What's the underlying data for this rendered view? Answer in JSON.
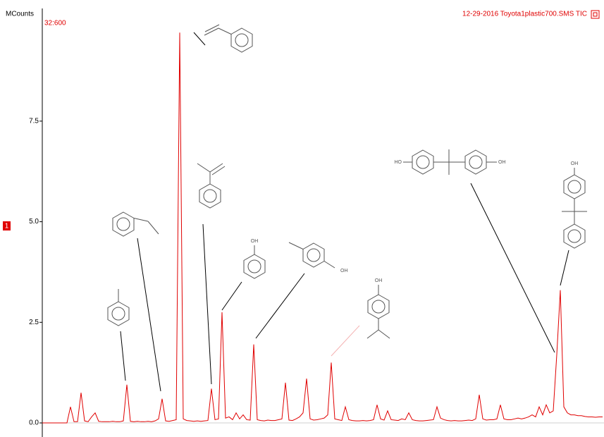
{
  "chart_data": {
    "type": "line",
    "y_label": "MCounts",
    "subtitle": "32:600",
    "title": "12-29-2016  Toyota1plastic700.SMS TIC",
    "marker": "1",
    "color": "#e00000",
    "ylim": [
      -0.35,
      10.3
    ],
    "yticks": [
      {
        "value": 0,
        "label": "0.0"
      },
      2.5,
      {
        "value": 5,
        "label": "5.0"
      },
      7.5
    ],
    "annotations": [
      "OH",
      "OH",
      "OH",
      "HO",
      "OH",
      "OH"
    ],
    "values": [
      0,
      0,
      0,
      0,
      0,
      0,
      0,
      0,
      0.4,
      0.03,
      0.03,
      0.75,
      0.05,
      0.03,
      0.15,
      0.25,
      0.04,
      0.03,
      0.03,
      0.03,
      0.04,
      0.03,
      0.03,
      0.05,
      0.95,
      0.04,
      0.03,
      0.04,
      0.03,
      0.03,
      0.04,
      0.03,
      0.05,
      0.1,
      0.6,
      0.05,
      0.04,
      0.06,
      0.08,
      9.7,
      0.1,
      0.06,
      0.05,
      0.04,
      0.05,
      0.04,
      0.05,
      0.06,
      0.85,
      0.08,
      0.1,
      2.75,
      0.12,
      0.15,
      0.08,
      0.25,
      0.1,
      0.2,
      0.08,
      0.07,
      1.95,
      0.08,
      0.06,
      0.05,
      0.07,
      0.06,
      0.06,
      0.08,
      0.1,
      1.0,
      0.07,
      0.06,
      0.1,
      0.15,
      0.25,
      1.1,
      0.1,
      0.07,
      0.08,
      0.1,
      0.12,
      0.2,
      1.5,
      0.1,
      0.08,
      0.06,
      0.4,
      0.08,
      0.06,
      0.05,
      0.05,
      0.06,
      0.05,
      0.06,
      0.08,
      0.45,
      0.1,
      0.07,
      0.3,
      0.08,
      0.07,
      0.06,
      0.1,
      0.08,
      0.25,
      0.08,
      0.06,
      0.05,
      0.05,
      0.06,
      0.07,
      0.08,
      0.4,
      0.12,
      0.08,
      0.06,
      0.05,
      0.06,
      0.05,
      0.05,
      0.06,
      0.07,
      0.06,
      0.1,
      0.7,
      0.1,
      0.07,
      0.08,
      0.08,
      0.1,
      0.45,
      0.1,
      0.08,
      0.08,
      0.1,
      0.12,
      0.1,
      0.12,
      0.15,
      0.2,
      0.15,
      0.4,
      0.2,
      0.45,
      0.25,
      0.3,
      1.7,
      3.3,
      0.4,
      0.25,
      0.2,
      0.2,
      0.18,
      0.18,
      0.16,
      0.15,
      0.15,
      0.14,
      0.15,
      0.15
    ]
  }
}
